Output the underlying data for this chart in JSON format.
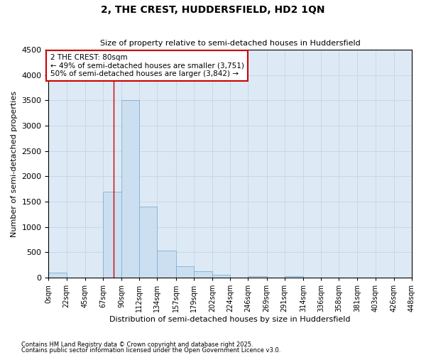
{
  "title": "2, THE CREST, HUDDERSFIELD, HD2 1QN",
  "subtitle": "Size of property relative to semi-detached houses in Huddersfield",
  "xlabel": "Distribution of semi-detached houses by size in Huddersfield",
  "ylabel": "Number of semi-detached properties",
  "footnote1": "Contains HM Land Registry data © Crown copyright and database right 2025.",
  "footnote2": "Contains public sector information licensed under the Open Government Licence v3.0.",
  "bar_color": "#ccdff0",
  "bar_edge_color": "#7ab0d4",
  "grid_color": "#c8d8e8",
  "bg_color": "#ddeaf5",
  "fig_bg_color": "#ffffff",
  "annotation_box_color": "#cc0000",
  "annotation_text": "2 THE CREST: 80sqm\n← 49% of semi-detached houses are smaller (3,751)\n50% of semi-detached houses are larger (3,842) →",
  "vline_x": 80,
  "vline_color": "#cc0000",
  "bins": [
    0,
    22,
    45,
    67,
    90,
    112,
    134,
    157,
    179,
    202,
    224,
    246,
    269,
    291,
    314,
    336,
    358,
    381,
    403,
    426,
    448
  ],
  "bin_labels": [
    "0sqm",
    "22sqm",
    "45sqm",
    "67sqm",
    "90sqm",
    "112sqm",
    "134sqm",
    "157sqm",
    "179sqm",
    "202sqm",
    "224sqm",
    "246sqm",
    "269sqm",
    "291sqm",
    "314sqm",
    "336sqm",
    "358sqm",
    "381sqm",
    "403sqm",
    "426sqm",
    "448sqm"
  ],
  "bar_heights": [
    100,
    0,
    0,
    1700,
    3500,
    1400,
    530,
    230,
    130,
    60,
    0,
    25,
    0,
    30,
    0,
    0,
    0,
    0,
    0,
    0,
    0
  ],
  "ylim": [
    0,
    4500
  ],
  "yticks": [
    0,
    500,
    1000,
    1500,
    2000,
    2500,
    3000,
    3500,
    4000,
    4500
  ]
}
